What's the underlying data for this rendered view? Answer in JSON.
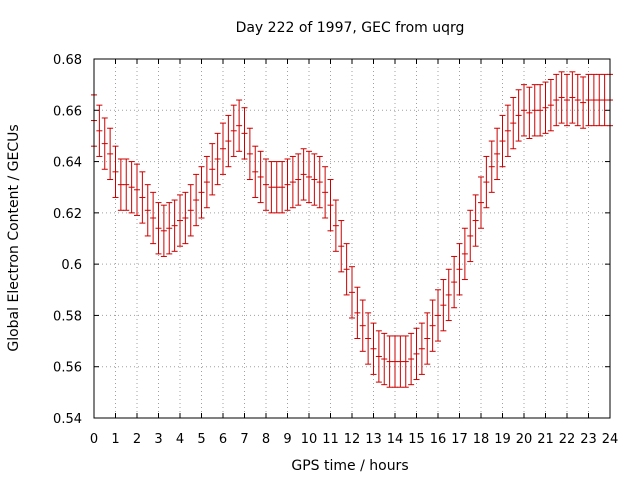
{
  "chart_data": {
    "type": "errorbar",
    "title": "Day 222 of 1997, GEC from uqrg",
    "xlabel": "GPS time / hours",
    "ylabel": "Global Electron Content / GECUs",
    "xlim": [
      0,
      24
    ],
    "ylim": [
      0.54,
      0.68
    ],
    "grid": true,
    "x_ticks": [
      0,
      1,
      2,
      3,
      4,
      5,
      6,
      7,
      8,
      9,
      10,
      11,
      12,
      13,
      14,
      15,
      16,
      17,
      18,
      19,
      20,
      21,
      22,
      23,
      24
    ],
    "y_ticks": [
      0.54,
      0.56,
      0.58,
      0.6,
      0.62,
      0.64,
      0.66,
      0.68
    ],
    "x_tick_labels": [
      "0",
      "1",
      "2",
      "3",
      "4",
      "5",
      "6",
      "7",
      "8",
      "9",
      "10",
      "11",
      "12",
      "13",
      "14",
      "15",
      "16",
      "17",
      "18",
      "19",
      "20",
      "21",
      "22",
      "23",
      "24"
    ],
    "y_tick_labels": [
      "0.54",
      "0.56",
      "0.58",
      "0.6",
      "0.62",
      "0.64",
      "0.66",
      "0.68"
    ],
    "series": [
      {
        "name": "GEC",
        "color": "#cc0000",
        "error": 0.01,
        "x": [
          0,
          0.25,
          0.5,
          0.75,
          1,
          1.25,
          1.5,
          1.75,
          2,
          2.25,
          2.5,
          2.75,
          3,
          3.25,
          3.5,
          3.75,
          4,
          4.25,
          4.5,
          4.75,
          5,
          5.25,
          5.5,
          5.75,
          6,
          6.25,
          6.5,
          6.75,
          7,
          7.25,
          7.5,
          7.75,
          8,
          8.25,
          8.5,
          8.75,
          9,
          9.25,
          9.5,
          9.75,
          10,
          10.25,
          10.5,
          10.75,
          11,
          11.25,
          11.5,
          11.75,
          12,
          12.25,
          12.5,
          12.75,
          13,
          13.25,
          13.5,
          13.75,
          14,
          14.25,
          14.5,
          14.75,
          15,
          15.25,
          15.5,
          15.75,
          16,
          16.25,
          16.5,
          16.75,
          17,
          17.25,
          17.5,
          17.75,
          18,
          18.25,
          18.5,
          18.75,
          19,
          19.25,
          19.5,
          19.75,
          20,
          20.25,
          20.5,
          20.75,
          21,
          21.25,
          21.5,
          21.75,
          22,
          22.25,
          22.5,
          22.75,
          23,
          23.25,
          23.5,
          23.75,
          24
        ],
        "values": [
          0.656,
          0.652,
          0.647,
          0.643,
          0.636,
          0.631,
          0.631,
          0.63,
          0.629,
          0.626,
          0.621,
          0.618,
          0.614,
          0.613,
          0.614,
          0.615,
          0.617,
          0.618,
          0.621,
          0.625,
          0.628,
          0.632,
          0.637,
          0.641,
          0.645,
          0.648,
          0.652,
          0.654,
          0.651,
          0.643,
          0.636,
          0.634,
          0.631,
          0.63,
          0.63,
          0.63,
          0.631,
          0.632,
          0.633,
          0.635,
          0.634,
          0.633,
          0.632,
          0.628,
          0.623,
          0.615,
          0.607,
          0.598,
          0.589,
          0.581,
          0.576,
          0.571,
          0.567,
          0.564,
          0.563,
          0.562,
          0.562,
          0.562,
          0.562,
          0.563,
          0.565,
          0.567,
          0.571,
          0.576,
          0.58,
          0.584,
          0.588,
          0.593,
          0.598,
          0.604,
          0.611,
          0.617,
          0.624,
          0.632,
          0.638,
          0.643,
          0.648,
          0.652,
          0.655,
          0.658,
          0.66,
          0.659,
          0.66,
          0.66,
          0.661,
          0.662,
          0.664,
          0.665,
          0.664,
          0.665,
          0.664,
          0.663,
          0.664,
          0.664,
          0.664,
          0.664,
          0.664
        ]
      }
    ]
  }
}
